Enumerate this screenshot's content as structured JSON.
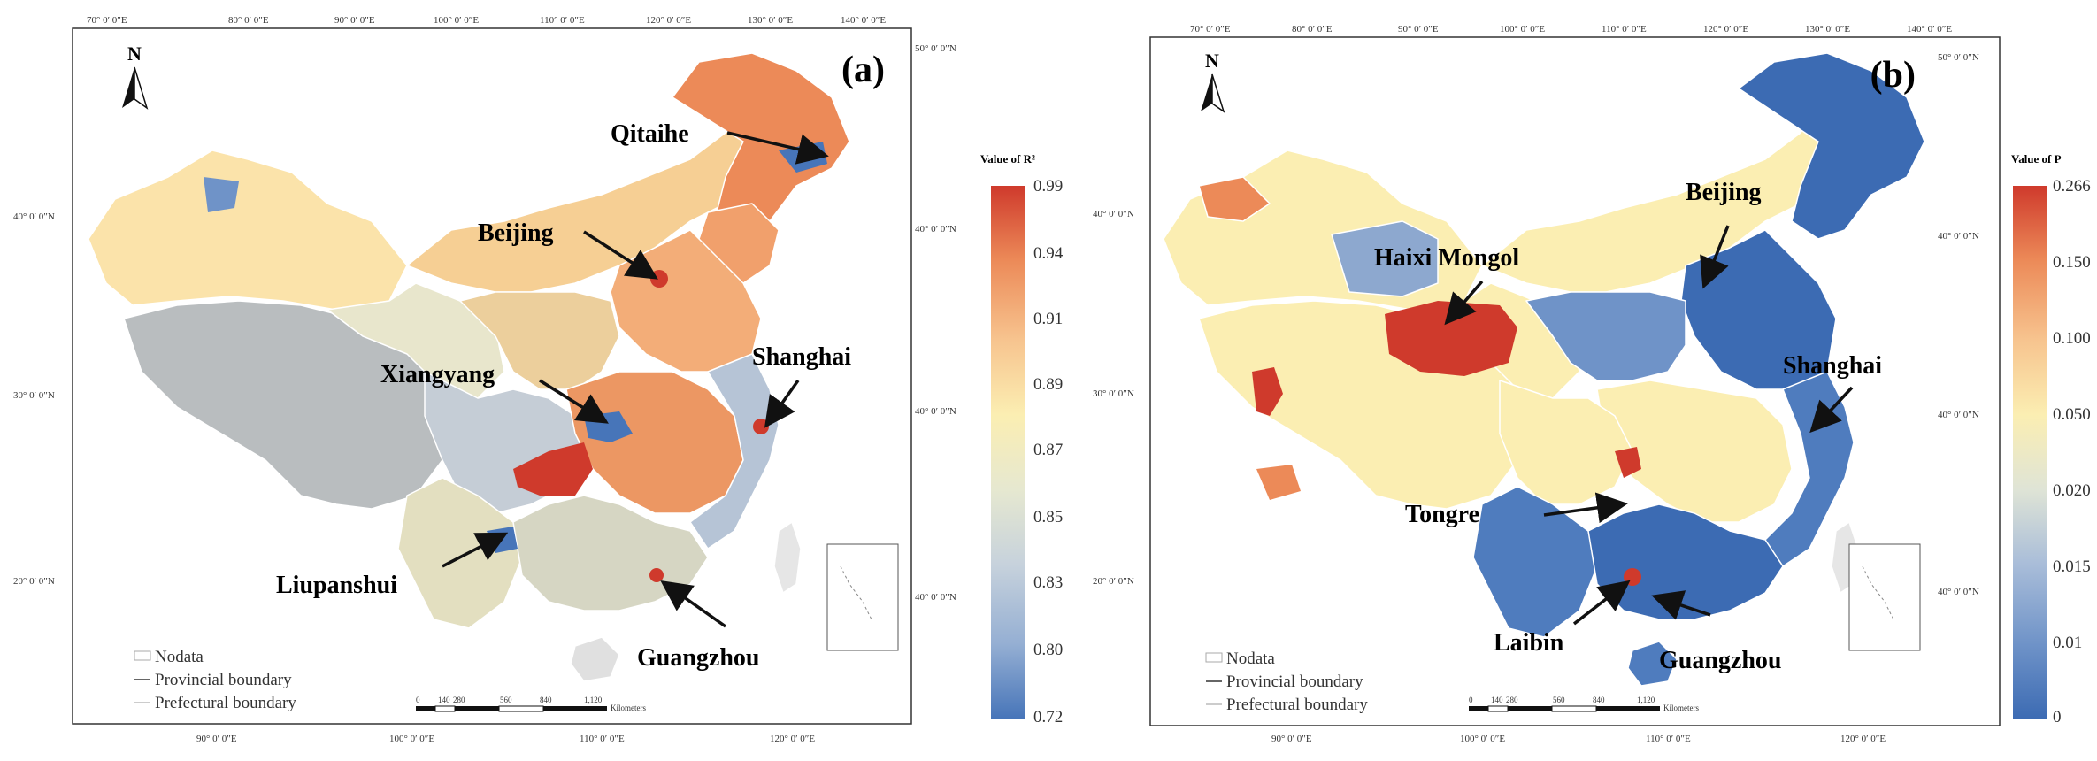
{
  "panel_a": {
    "label": "(a)",
    "legend_title": "Value of R²",
    "legend_values": [
      "0.99",
      "0.94",
      "0.91",
      "0.89",
      "0.87",
      "0.85",
      "0.83",
      "0.80",
      "0.72"
    ],
    "legend_colors": [
      "#cf3a2c",
      "#ec8a58",
      "#f7c48f",
      "#fbeeb2",
      "#e6e8d0",
      "#c7d2dc",
      "#95afd3",
      "#6f93c8",
      "#4775b9"
    ],
    "cities": [
      "Qitaihe",
      "Beijing",
      "Xiangyang",
      "Shanghai",
      "Liupanshui",
      "Guangzhou"
    ],
    "top_ticks": [
      "70° 0′ 0″E",
      "80° 0′ 0″E",
      "90° 0′ 0″E",
      "100° 0′ 0″E",
      "110° 0′ 0″E",
      "120° 0′ 0″E",
      "130° 0′ 0″E",
      "140° 0′ 0″E"
    ],
    "bottom_ticks": [
      "90° 0′ 0″E",
      "100° 0′ 0″E",
      "110° 0′ 0″E",
      "120° 0′ 0″E"
    ],
    "left_ticks": [
      "40° 0′ 0″N",
      "30° 0′ 0″N",
      "20° 0′ 0″N"
    ],
    "right_ticks": [
      "50° 0′ 0″N",
      "40° 0′ 0″N",
      "40° 0′ 0″N",
      "40° 0′ 0″N"
    ]
  },
  "panel_b": {
    "label": "(b)",
    "legend_title": "Value of P",
    "legend_values": [
      "0.266",
      "0.150",
      "0.100",
      "0.050",
      "0.020",
      "0.015",
      "0.01",
      "0"
    ],
    "legend_colors": [
      "#cf3a2c",
      "#ec8a58",
      "#f7c48f",
      "#fbeeb2",
      "#dfe4d6",
      "#a9bdd9",
      "#6f93c8",
      "#3c6bb3"
    ],
    "cities": [
      "Beijing",
      "Haixi Mongol",
      "Shanghai",
      "Tongre",
      "Laibin",
      "Guangzhou"
    ],
    "top_ticks": [
      "70° 0′ 0″E",
      "80° 0′ 0″E",
      "90° 0′ 0″E",
      "100° 0′ 0″E",
      "110° 0′ 0″E",
      "120° 0′ 0″E",
      "130° 0′ 0″E",
      "140° 0′ 0″E"
    ],
    "bottom_ticks": [
      "90° 0′ 0″E",
      "100° 0′ 0″E",
      "110° 0′ 0″E",
      "120° 0′ 0″E"
    ],
    "left_ticks": [
      "40° 0′ 0″N",
      "30° 0′ 0″N",
      "20° 0′ 0″N"
    ],
    "right_ticks": [
      "50° 0′ 0″N",
      "40° 0′ 0″N",
      "40° 0′ 0″N",
      "40° 0′ 0″N"
    ]
  },
  "common": {
    "north": "N",
    "legend_items": [
      "Nodata",
      "Provincial boundary",
      "Prefectural boundary"
    ],
    "scale_ticks": [
      "0",
      "140",
      "280",
      "560",
      "840",
      "1,120"
    ],
    "scale_unit": "Kilometers"
  }
}
